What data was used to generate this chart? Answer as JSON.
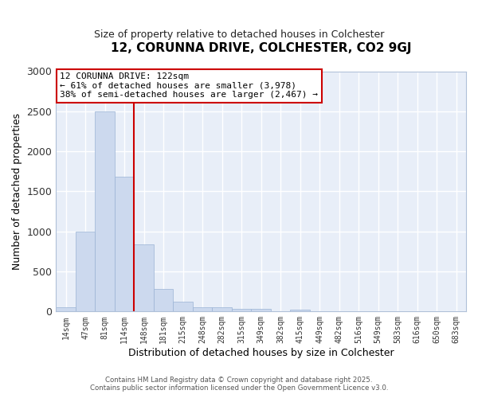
{
  "title": "12, CORUNNA DRIVE, COLCHESTER, CO2 9GJ",
  "subtitle": "Size of property relative to detached houses in Colchester",
  "xlabel": "Distribution of detached houses by size in Colchester",
  "ylabel": "Number of detached properties",
  "bin_labels": [
    "14sqm",
    "47sqm",
    "81sqm",
    "114sqm",
    "148sqm",
    "181sqm",
    "215sqm",
    "248sqm",
    "282sqm",
    "315sqm",
    "349sqm",
    "382sqm",
    "415sqm",
    "449sqm",
    "482sqm",
    "516sqm",
    "549sqm",
    "583sqm",
    "616sqm",
    "650sqm",
    "683sqm"
  ],
  "bar_values": [
    50,
    1000,
    2500,
    1680,
    840,
    280,
    120,
    55,
    55,
    35,
    35,
    0,
    20,
    0,
    0,
    0,
    0,
    0,
    0,
    0,
    0
  ],
  "bar_color": "#ccd9ee",
  "bar_edge_color": "#9ab3d5",
  "vline_x_idx": 3,
  "vline_color": "#cc0000",
  "ylim": [
    0,
    3000
  ],
  "yticks": [
    0,
    500,
    1000,
    1500,
    2000,
    2500,
    3000
  ],
  "annotation_title": "12 CORUNNA DRIVE: 122sqm",
  "annotation_line1": "← 61% of detached houses are smaller (3,978)",
  "annotation_line2": "38% of semi-detached houses are larger (2,467) →",
  "annotation_box_color": "#ffffff",
  "annotation_box_edge": "#cc0000",
  "footnote1": "Contains HM Land Registry data © Crown copyright and database right 2025.",
  "footnote2": "Contains public sector information licensed under the Open Government Licence v3.0.",
  "plot_bg_color": "#e8eef8",
  "fig_bg_color": "#ffffff",
  "grid_color": "#ffffff",
  "title_fontsize": 11,
  "subtitle_fontsize": 9
}
